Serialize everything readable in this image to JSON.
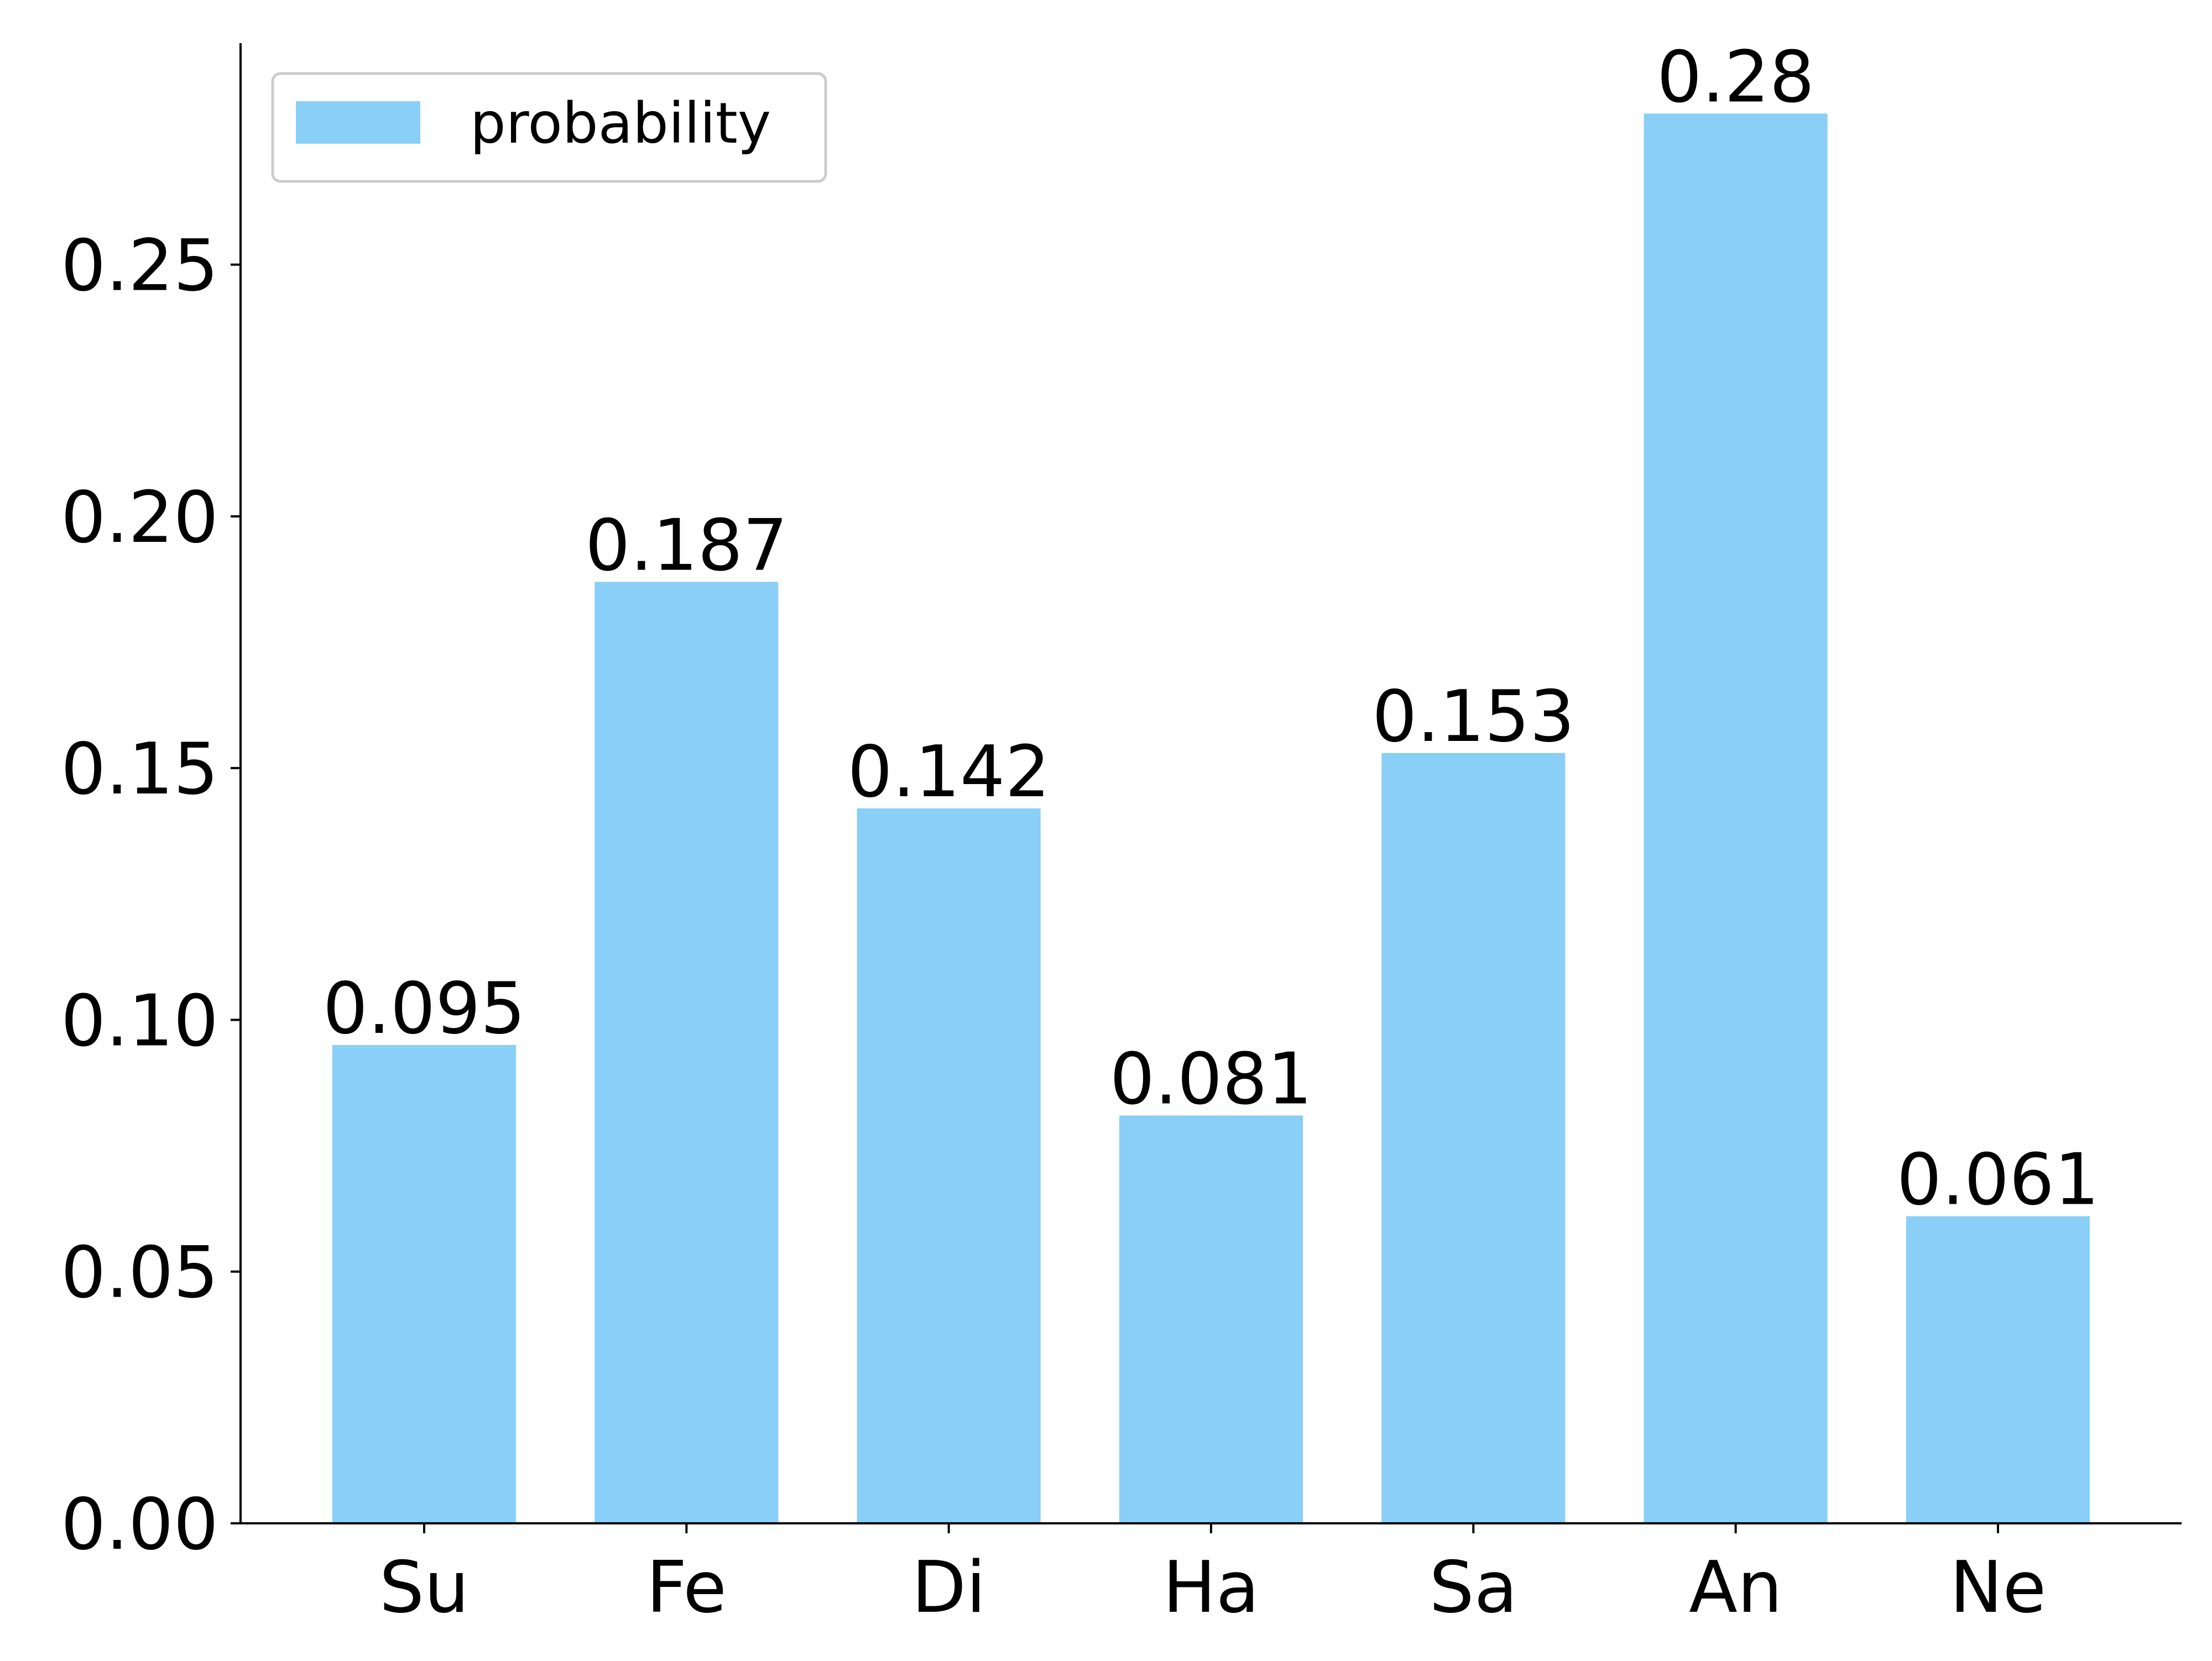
{
  "chart_data": {
    "type": "bar",
    "categories": [
      "Su",
      "Fe",
      "Di",
      "Ha",
      "Sa",
      "An",
      "Ne"
    ],
    "series": [
      {
        "name": "probability",
        "values": [
          0.095,
          0.187,
          0.142,
          0.081,
          0.153,
          0.28,
          0.061
        ],
        "labels": [
          "0.095",
          "0.187",
          "0.142",
          "0.081",
          "0.153",
          "0.28",
          "0.061"
        ],
        "color": "#89CFF7"
      }
    ],
    "title": "",
    "xlabel": "",
    "ylabel": "",
    "ylim": [
      0,
      0.294
    ],
    "yticks": [
      0,
      0.05,
      0.1,
      0.15,
      0.2,
      0.25
    ],
    "ytick_labels": [
      "0.00",
      "0.05",
      "0.10",
      "0.15",
      "0.20",
      "0.25"
    ],
    "grid": false,
    "legend_placement": "top-left",
    "spines": [
      "left",
      "bottom"
    ]
  }
}
